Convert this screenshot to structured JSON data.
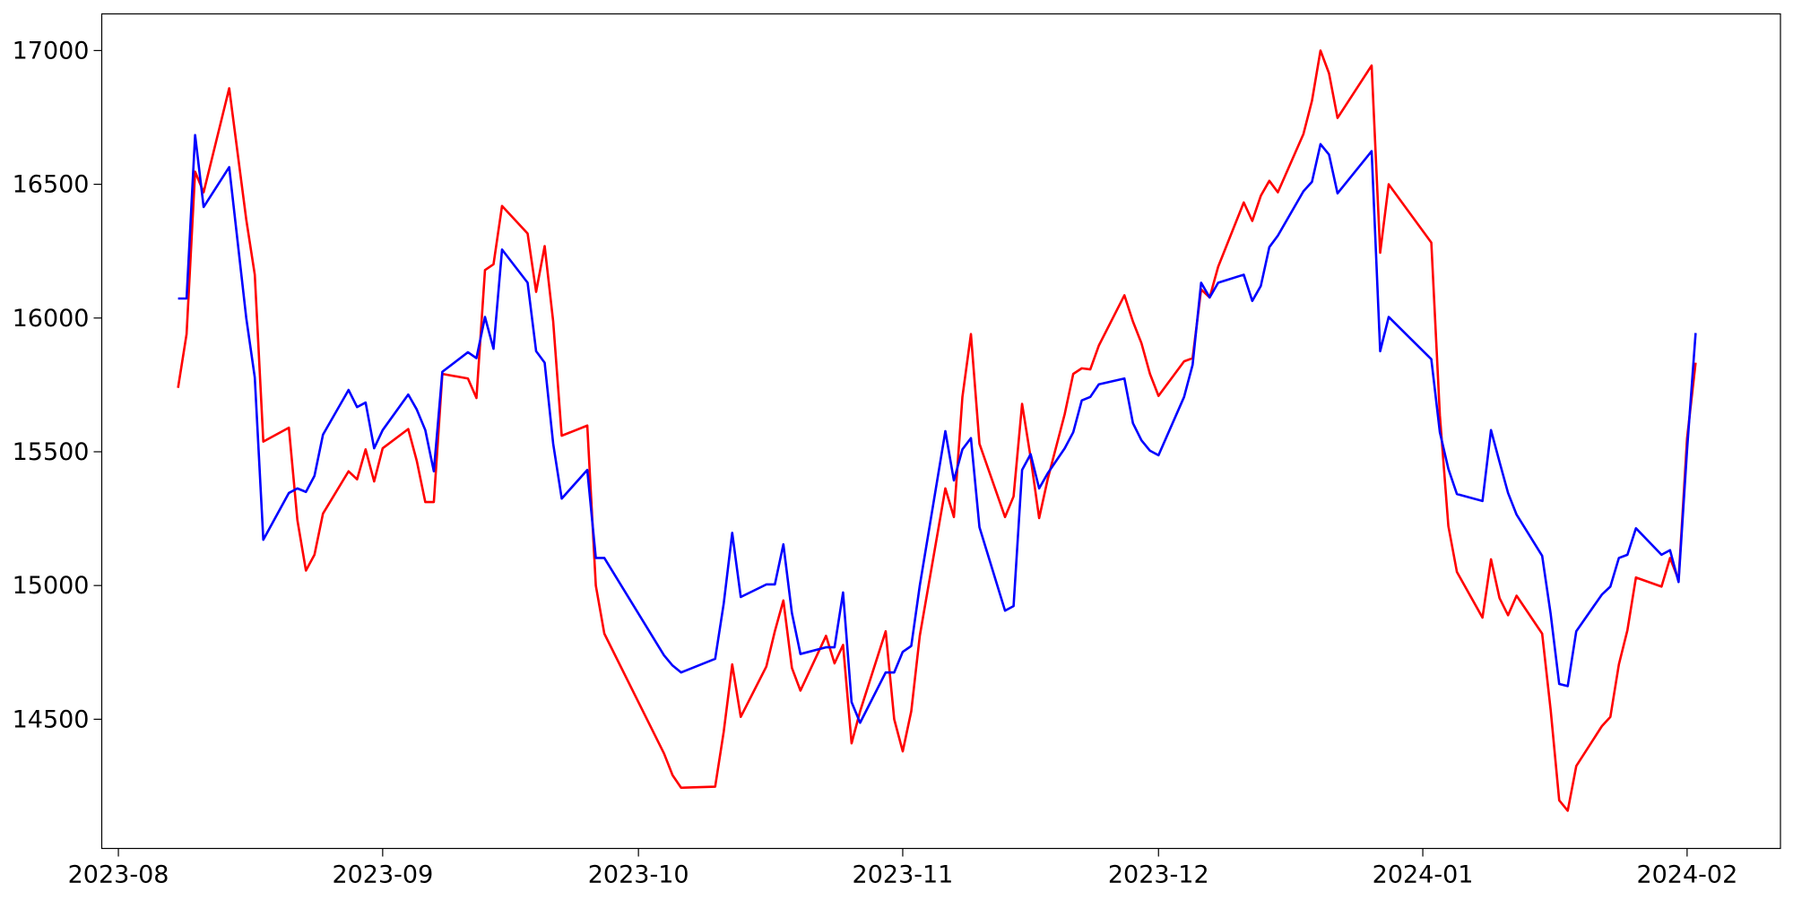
{
  "chart_data": {
    "type": "line",
    "x": [
      19577,
      19578,
      19579,
      19580,
      19583,
      19585,
      19586,
      19587,
      19590,
      19591,
      19592,
      19593,
      19594,
      19597,
      19598,
      19599,
      19600,
      19601,
      19604,
      19605,
      19606,
      19607,
      19608,
      19611,
      19612,
      19613,
      19614,
      19615,
      19618,
      19619,
      19620,
      19621,
      19622,
      19625,
      19626,
      19627,
      19634,
      19635,
      19636,
      19640,
      19641,
      19642,
      19643,
      19646,
      19647,
      19648,
      19649,
      19650,
      19653,
      19654,
      19655,
      19656,
      19657,
      19660,
      19661,
      19662,
      19663,
      19664,
      19667,
      19668,
      19669,
      19670,
      19671,
      19674,
      19675,
      19676,
      19677,
      19678,
      19679,
      19681,
      19682,
      19683,
      19684,
      19685,
      19688,
      19689,
      19690,
      19691,
      19692,
      19695,
      19696,
      19697,
      19698,
      19699,
      19702,
      19703,
      19704,
      19705,
      19706,
      19709,
      19710,
      19711,
      19712,
      19713,
      19717,
      19718,
      19719,
      19724,
      19725,
      19726,
      19727,
      19730,
      19731,
      19732,
      19733,
      19734,
      19737,
      19738,
      19739,
      19740,
      19741,
      19744,
      19745,
      19746,
      19747,
      19748,
      19751,
      19752,
      19753,
      19754,
      19755
    ],
    "series": [
      {
        "color": "#ff0000",
        "values": [
          15739,
          15940,
          16547,
          16470,
          16859,
          16368,
          16162,
          15538,
          15590,
          15244,
          15056,
          15115,
          15269,
          15427,
          15397,
          15509,
          15389,
          15513,
          15585,
          15466,
          15312,
          15312,
          15791,
          15774,
          15701,
          16179,
          16201,
          16419,
          16316,
          16098,
          16269,
          15987,
          15560,
          15598,
          15000,
          14820,
          14372,
          14291,
          14244,
          14248,
          14453,
          14705,
          14509,
          14697,
          14829,
          14944,
          14692,
          14607,
          14812,
          14709,
          14778,
          14410,
          14530,
          14829,
          14500,
          14380,
          14530,
          14812,
          15363,
          15256,
          15705,
          15940,
          15530,
          15256,
          15333,
          15679,
          15479,
          15252,
          15397,
          15641,
          15791,
          15812,
          15808,
          15897,
          16085,
          15987,
          15906,
          15791,
          15709,
          15838,
          15850,
          16107,
          16077,
          16192,
          16432,
          16363,
          16457,
          16513,
          16470,
          16688,
          16812,
          17000,
          16915,
          16748,
          16944,
          16244,
          16500,
          16282,
          15637,
          15222,
          15051,
          14880,
          15098,
          14953,
          14889,
          14962,
          14820,
          14534,
          14197,
          14158,
          14325,
          14474,
          14509,
          14705,
          14833,
          15030,
          14996,
          15103,
          15021,
          15551,
          15833
        ]
      },
      {
        "color": "#0000ff",
        "values": [
          16073,
          16073,
          16684,
          16415,
          16564,
          16000,
          15778,
          15171,
          15346,
          15363,
          15350,
          15410,
          15564,
          15731,
          15667,
          15684,
          15513,
          15581,
          15714,
          15658,
          15581,
          15427,
          15799,
          15872,
          15850,
          16004,
          15885,
          16256,
          16132,
          15876,
          15833,
          15530,
          15325,
          15432,
          15103,
          15103,
          14739,
          14701,
          14675,
          14726,
          14932,
          15197,
          14957,
          15004,
          15004,
          15154,
          14897,
          14744,
          14769,
          14769,
          14974,
          14564,
          14487,
          14675,
          14675,
          14752,
          14774,
          15000,
          15577,
          15393,
          15509,
          15551,
          15218,
          14906,
          14923,
          15432,
          15491,
          15363,
          15419,
          15513,
          15573,
          15692,
          15705,
          15752,
          15774,
          15607,
          15543,
          15504,
          15487,
          15705,
          15825,
          16132,
          16077,
          16132,
          16162,
          16064,
          16120,
          16265,
          16308,
          16474,
          16509,
          16650,
          16611,
          16466,
          16624,
          15876,
          16004,
          15846,
          15573,
          15436,
          15342,
          15316,
          15581,
          15462,
          15346,
          15265,
          15111,
          14893,
          14632,
          14624,
          14829,
          14966,
          14996,
          15103,
          15115,
          15214,
          15115,
          15132,
          15013,
          15509,
          15944
        ]
      }
    ],
    "xlim": [
      19568.05,
      19764.95
    ],
    "xticks": [
      {
        "value": 19570,
        "label": "2023-08"
      },
      {
        "value": 19601,
        "label": "2023-09"
      },
      {
        "value": 19631,
        "label": "2023-10"
      },
      {
        "value": 19662,
        "label": "2023-11"
      },
      {
        "value": 19692,
        "label": "2023-12"
      },
      {
        "value": 19723,
        "label": "2024-01"
      },
      {
        "value": 19754,
        "label": "2024-02"
      }
    ],
    "ylim": [
      14017,
      17137
    ],
    "yticks": [
      14500,
      15000,
      15500,
      16000,
      16500,
      17000
    ],
    "grid": false
  }
}
